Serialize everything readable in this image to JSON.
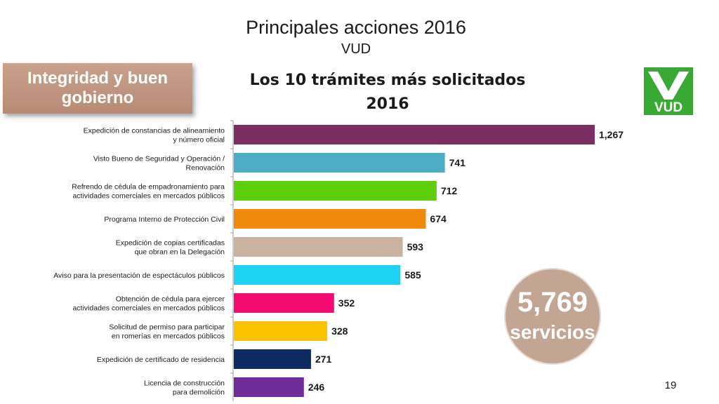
{
  "header": {
    "title": "Principales acciones 2016",
    "subtitle": "VUD"
  },
  "badge": {
    "text": "Integridad y buen gobierno"
  },
  "logo": {
    "text": "VUD",
    "icon": "vud-logo-icon",
    "color": "#39a935"
  },
  "total": {
    "value": "5,769",
    "unit": "servicios",
    "color": "#c2a592"
  },
  "page_number": "19",
  "chart_data": {
    "type": "bar",
    "orientation": "horizontal",
    "title_lines": [
      "Los 10 trámites más solicitados",
      "2016"
    ],
    "categories": [
      [
        "Expedición de constancias de alineamiento",
        "y número oficial"
      ],
      [
        "Visto Bueno de Seguridad y Operación /",
        "Renovación"
      ],
      [
        "Refrendo de cédula de empadronamiento para",
        "actividades comerciales en mercados públicos"
      ],
      [
        "Programa Interno de Protección Civil"
      ],
      [
        "Expedición de copias certificadas",
        "que obran en la Delegación"
      ],
      [
        "Aviso para la presentación de espectáculos públicos"
      ],
      [
        "Obtención de cédula para ejercer",
        "actividades comerciales en mercados públicos"
      ],
      [
        "Solicitud de permiso para participar",
        "en romerías en mercados públicos"
      ],
      [
        "Expedición de certificado de residencia"
      ],
      [
        "Licencia de construcción",
        "para demolición"
      ]
    ],
    "values": [
      1267,
      741,
      712,
      674,
      593,
      585,
      352,
      328,
      271,
      246
    ],
    "value_labels": [
      "1,267",
      "741",
      "712",
      "674",
      "593",
      "585",
      "352",
      "328",
      "271",
      "246"
    ],
    "colors": [
      "#7b2e62",
      "#4badc6",
      "#5dcf0d",
      "#f18a0a",
      "#c9b3a0",
      "#1fd2f3",
      "#f50c72",
      "#fbc200",
      "#0e2b63",
      "#6f2c99"
    ],
    "xlim": [
      0,
      1267
    ],
    "grid": false,
    "legend": "none"
  }
}
